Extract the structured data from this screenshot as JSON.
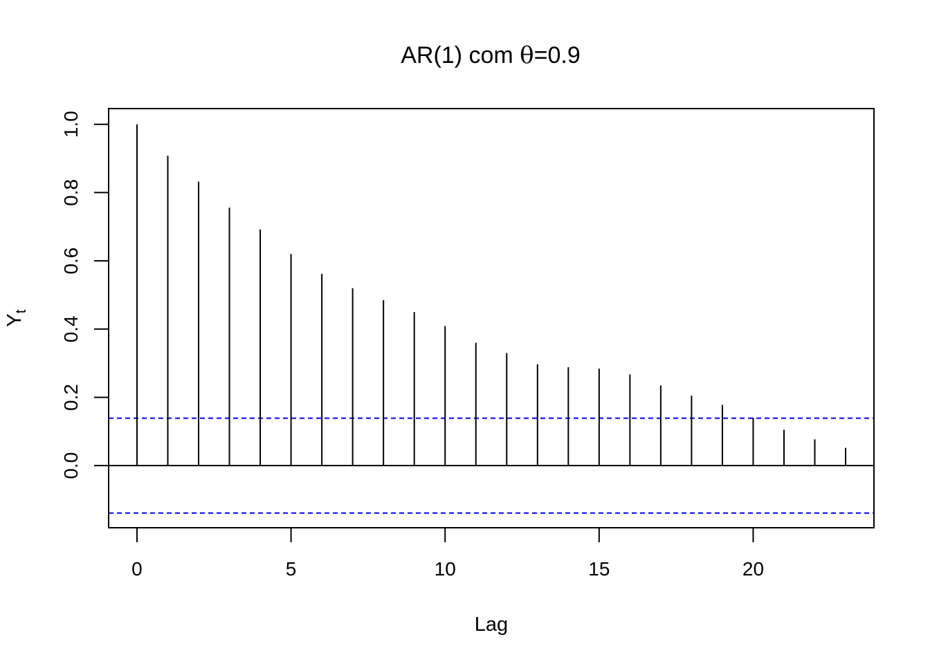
{
  "chart_data": {
    "type": "bar",
    "title_main": "AR(1) com ",
    "title_symbol": "θ",
    "title_rest": "=0.9",
    "xlabel": "Lag",
    "ylabel_main": "Y",
    "ylabel_sub": "t",
    "xlim": [
      -0.92,
      23.92
    ],
    "ylim": [
      -0.182,
      1.046
    ],
    "x_ticks": [
      "0",
      "5",
      "10",
      "15",
      "20"
    ],
    "y_ticks": [
      "0.0",
      "0.2",
      "0.4",
      "0.6",
      "0.8",
      "1.0"
    ],
    "confidence_band": [
      0.139,
      -0.139
    ],
    "confidence_color": "#0000ff",
    "lags": [
      0,
      1,
      2,
      3,
      4,
      5,
      6,
      7,
      8,
      9,
      10,
      11,
      12,
      13,
      14,
      15,
      16,
      17,
      18,
      19,
      20,
      21,
      22,
      23
    ],
    "values": [
      1.0,
      0.908,
      0.832,
      0.756,
      0.692,
      0.62,
      0.562,
      0.52,
      0.485,
      0.45,
      0.409,
      0.36,
      0.33,
      0.297,
      0.288,
      0.284,
      0.267,
      0.235,
      0.205,
      0.178,
      0.14,
      0.105,
      0.077,
      0.052
    ]
  }
}
